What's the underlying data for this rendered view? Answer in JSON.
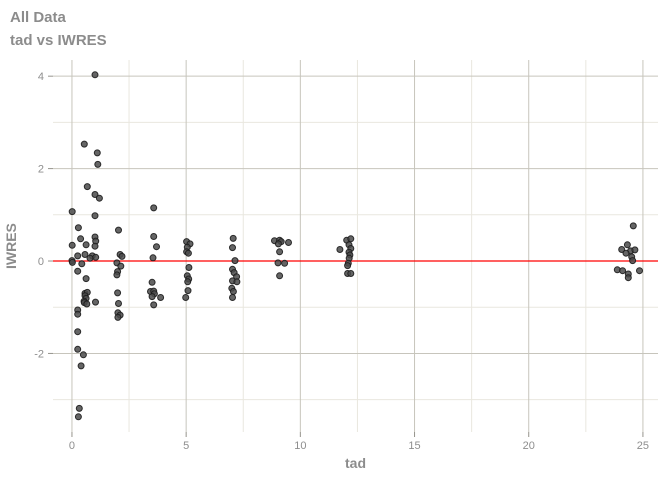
{
  "title": "All Data",
  "subtitle": "tad vs IWRES",
  "colors": {
    "background": "#ffffff",
    "title_text": "#8c8c8c",
    "axis_text": "#8e8e8e",
    "grid_major": "#c7c5bc",
    "grid_minor": "#e9e7df",
    "tick_mark": "#95938c",
    "reference_line": "#ff0000",
    "point_fill": "#4a4a4a",
    "point_stroke": "#1c1c1c"
  },
  "chart_data": {
    "type": "scatter",
    "title": "All Data",
    "subtitle": "tad vs IWRES",
    "xlabel": "tad",
    "ylabel": "IWRES",
    "xlim": [
      -0.83,
      25.66
    ],
    "ylim": [
      -3.7,
      4.35
    ],
    "x_ticks": [
      0,
      5,
      10,
      15,
      20,
      25
    ],
    "y_ticks": [
      -2,
      0,
      2,
      4
    ],
    "x_minor_ticks": [
      2.5,
      7.5,
      12.5,
      17.5,
      22.5
    ],
    "y_minor_ticks": [
      -3,
      -1,
      1,
      3
    ],
    "grid": true,
    "legend": "none",
    "reference_line": {
      "y": 0
    },
    "points": [
      [
        1.01,
        4.03
      ],
      [
        0.54,
        2.53
      ],
      [
        1.11,
        2.34
      ],
      [
        1.13,
        2.09
      ],
      [
        0.67,
        1.61
      ],
      [
        1.01,
        1.44
      ],
      [
        1.2,
        1.36
      ],
      [
        3.58,
        1.15
      ],
      [
        0.01,
        1.07
      ],
      [
        1.01,
        0.98
      ],
      [
        0.28,
        0.72
      ],
      [
        2.04,
        0.67
      ],
      [
        0.38,
        0.48
      ],
      [
        1.01,
        0.52
      ],
      [
        1.04,
        0.43
      ],
      [
        0.01,
        0.34
      ],
      [
        0.62,
        0.35
      ],
      [
        1.01,
        0.32
      ],
      [
        0.25,
        0.11
      ],
      [
        0.57,
        0.14
      ],
      [
        0.89,
        0.11
      ],
      [
        1.04,
        0.08
      ],
      [
        0.79,
        0.06
      ],
      [
        0.0,
        0.01
      ],
      [
        0.02,
        -0.03
      ],
      [
        0.43,
        -0.06
      ],
      [
        0.25,
        -0.22
      ],
      [
        0.62,
        -0.38
      ],
      [
        0.57,
        -0.7
      ],
      [
        0.67,
        -0.68
      ],
      [
        0.57,
        -0.75
      ],
      [
        0.62,
        -0.81
      ],
      [
        0.53,
        -0.87
      ],
      [
        0.54,
        -0.9
      ],
      [
        0.65,
        -0.93
      ],
      [
        1.03,
        -0.89
      ],
      [
        0.25,
        -1.06
      ],
      [
        0.25,
        -1.15
      ],
      [
        0.25,
        -1.53
      ],
      [
        0.25,
        -1.91
      ],
      [
        0.5,
        -2.03
      ],
      [
        0.4,
        -2.27
      ],
      [
        0.32,
        -3.19
      ],
      [
        0.28,
        -3.37
      ],
      [
        2.11,
        0.14
      ],
      [
        2.19,
        0.1
      ],
      [
        1.97,
        -0.04
      ],
      [
        2.14,
        -0.11
      ],
      [
        2.0,
        -0.23
      ],
      [
        1.97,
        -0.3
      ],
      [
        2.0,
        -0.69
      ],
      [
        2.04,
        -0.92
      ],
      [
        2.01,
        -1.12
      ],
      [
        2.11,
        -1.17
      ],
      [
        2.01,
        -1.22
      ],
      [
        3.58,
        0.53
      ],
      [
        3.7,
        0.31
      ],
      [
        3.55,
        0.07
      ],
      [
        3.51,
        -0.46
      ],
      [
        3.44,
        -0.66
      ],
      [
        3.58,
        -0.65
      ],
      [
        3.61,
        -0.71
      ],
      [
        3.51,
        -0.77
      ],
      [
        3.88,
        -0.79
      ],
      [
        3.58,
        -0.95
      ],
      [
        5.02,
        0.42
      ],
      [
        5.17,
        0.37
      ],
      [
        5.05,
        0.3
      ],
      [
        5.02,
        0.2
      ],
      [
        5.1,
        0.17
      ],
      [
        5.12,
        -0.14
      ],
      [
        5.05,
        -0.32
      ],
      [
        5.11,
        -0.39
      ],
      [
        5.07,
        -0.45
      ],
      [
        5.08,
        -0.64
      ],
      [
        4.98,
        -0.79
      ],
      [
        7.06,
        0.49
      ],
      [
        7.03,
        0.29
      ],
      [
        7.14,
        0.01
      ],
      [
        7.03,
        -0.18
      ],
      [
        7.1,
        -0.25
      ],
      [
        7.21,
        -0.34
      ],
      [
        7.03,
        -0.43
      ],
      [
        7.22,
        -0.45
      ],
      [
        7.0,
        -0.59
      ],
      [
        7.07,
        -0.66
      ],
      [
        7.03,
        -0.79
      ],
      [
        8.87,
        0.44
      ],
      [
        9.09,
        0.45
      ],
      [
        9.16,
        0.42
      ],
      [
        9.04,
        0.37
      ],
      [
        9.48,
        0.4
      ],
      [
        9.09,
        0.2
      ],
      [
        9.02,
        -0.04
      ],
      [
        9.31,
        -0.05
      ],
      [
        9.09,
        -0.32
      ],
      [
        12.03,
        0.45
      ],
      [
        12.21,
        0.48
      ],
      [
        12.13,
        0.35
      ],
      [
        11.73,
        0.25
      ],
      [
        12.21,
        0.27
      ],
      [
        12.13,
        0.19
      ],
      [
        12.17,
        0.13
      ],
      [
        12.14,
        0.06
      ],
      [
        12.1,
        -0.05
      ],
      [
        12.07,
        -0.1
      ],
      [
        12.07,
        -0.27
      ],
      [
        12.21,
        -0.27
      ],
      [
        24.58,
        0.76
      ],
      [
        24.07,
        0.25
      ],
      [
        24.32,
        0.35
      ],
      [
        24.46,
        0.22
      ],
      [
        24.65,
        0.24
      ],
      [
        24.26,
        0.17
      ],
      [
        24.51,
        0.09
      ],
      [
        24.55,
        0.01
      ],
      [
        23.88,
        -0.19
      ],
      [
        24.11,
        -0.21
      ],
      [
        24.36,
        -0.28
      ],
      [
        24.36,
        -0.36
      ],
      [
        24.85,
        -0.21
      ]
    ]
  }
}
